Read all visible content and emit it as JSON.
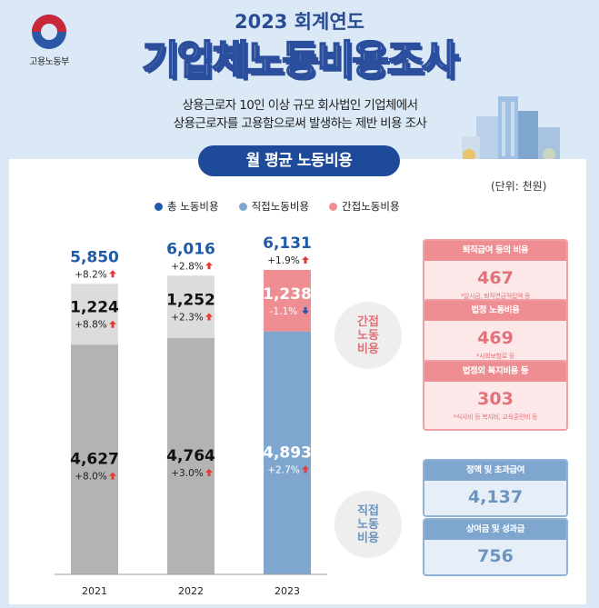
{
  "header": {
    "ministry": "고용노동부",
    "year_title": "2023 회계연도",
    "title": "기업체노동비용조사",
    "desc_line1": "상용근로자 10인 이상 규모 회사법인 기업체에서",
    "desc_line2": "상용근로자를 고용함으로써 발생하는 제반 비용 조사",
    "section": "월 평균 노동비용",
    "unit": "(단위: 천원)"
  },
  "colors": {
    "total": "#1f5aa8",
    "direct": "#7ea6cf",
    "indirect": "#ee8e93",
    "up_arrow": "#e53935",
    "down_arrow": "#2b58a6"
  },
  "legend": [
    {
      "label": "총 노동비용",
      "color": "#1f5aa8"
    },
    {
      "label": "직접노동비용",
      "color": "#7ea6cf"
    },
    {
      "label": "간접노동비용",
      "color": "#ee8e93"
    }
  ],
  "chart_data": {
    "type": "bar",
    "stacked": true,
    "categories": [
      "2021",
      "2022",
      "2023"
    ],
    "total": [
      {
        "value": "5,850",
        "change": "+8.2%",
        "dir": "up"
      },
      {
        "value": "6,016",
        "change": "+2.8%",
        "dir": "up"
      },
      {
        "value": "6,131",
        "change": "+1.9%",
        "dir": "up"
      }
    ],
    "series": [
      {
        "name": "직접노동비용",
        "values": [
          4627,
          4764,
          4893
        ],
        "labels": [
          "4,627",
          "4,764",
          "4,893"
        ],
        "changes": [
          "+8.0%",
          "+3.0%",
          "+2.7%"
        ],
        "dirs": [
          "up",
          "up",
          "up"
        ]
      },
      {
        "name": "간접노동비용",
        "values": [
          1224,
          1252,
          1238
        ],
        "labels": [
          "1,224",
          "1,252",
          "1,238"
        ],
        "changes": [
          "+8.8%",
          "+2.3%",
          "-1.1%"
        ],
        "dirs": [
          "up",
          "up",
          "down"
        ]
      }
    ],
    "ylim": [
      0,
      6200
    ],
    "grid": false,
    "legend_position": "top"
  },
  "callouts": {
    "indirect": [
      "간접",
      "노동",
      "비용"
    ],
    "direct": [
      "직접",
      "노동",
      "비용"
    ]
  },
  "indirect_cards": [
    {
      "title": "퇴직급여 등의 비용",
      "value": "467",
      "note": "*일시금, 퇴직연금적립액 등"
    },
    {
      "title": "법정 노동비용",
      "value": "469",
      "note": "*사회보험료 등"
    },
    {
      "title": "법정외 복지비용 등",
      "value": "303",
      "note": "*식사비 등 복지비, 교육훈련비 등"
    }
  ],
  "direct_cards": [
    {
      "title": "정액 및 초과급여",
      "value": "4,137"
    },
    {
      "title": "상여금 및 성과급",
      "value": "756"
    }
  ]
}
